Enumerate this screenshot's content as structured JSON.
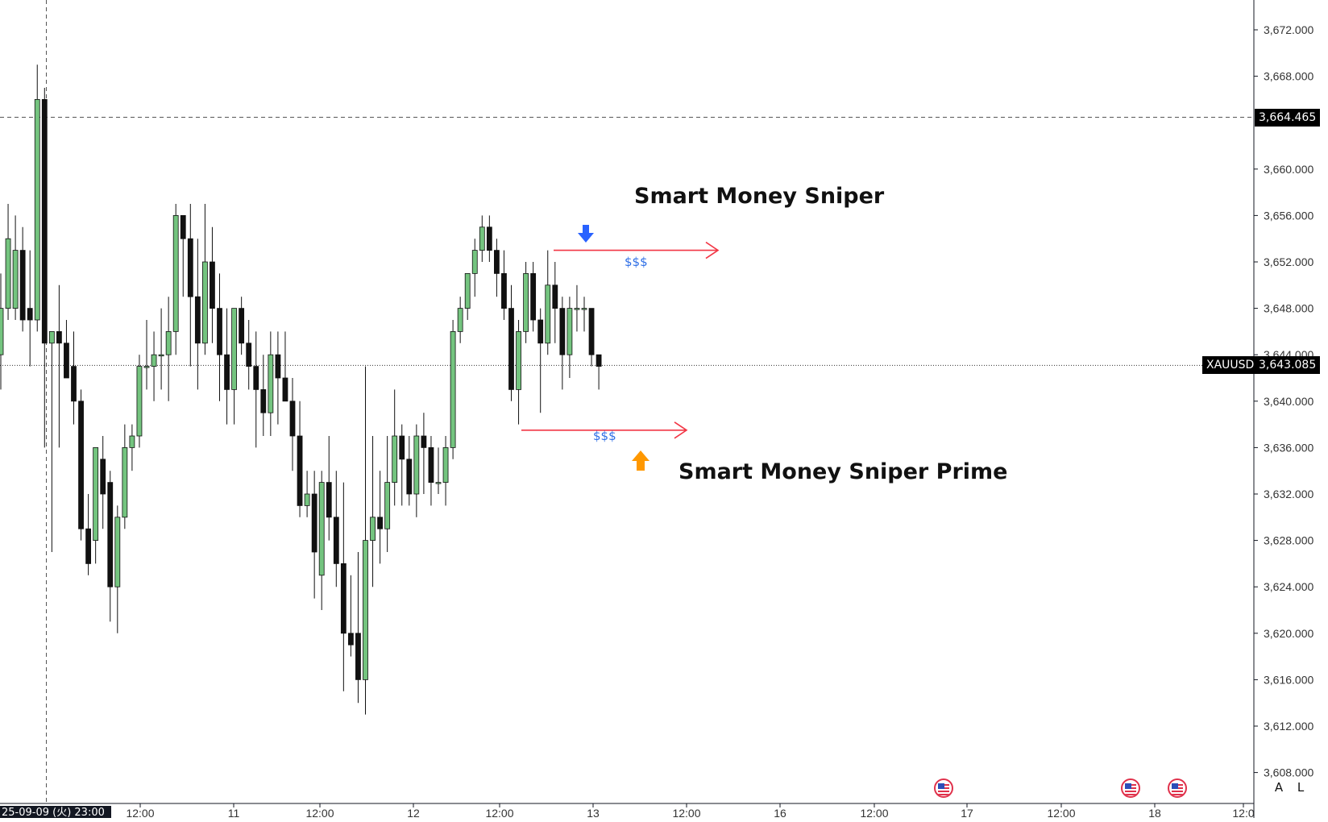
{
  "chart_data": {
    "type": "candlestick",
    "symbol": "XAUUSD",
    "last_price": "3,643.085",
    "crosshair_price": "3,664.465",
    "crosshair_date": "25-09-09 (火)  23:00",
    "ylim": [
      3606,
      3675
    ],
    "y_ticks": [
      "3,672.000",
      "3,668.000",
      "3,660.000",
      "3,656.000",
      "3,652.000",
      "3,648.000",
      "3,644.000",
      "3,640.000",
      "3,636.000",
      "3,632.000",
      "3,628.000",
      "3,624.000",
      "3,620.000",
      "3,616.000",
      "3,612.000",
      "3,608.000"
    ],
    "x_ticks": [
      "12:00",
      "11",
      "12:00",
      "12",
      "12:00",
      "13",
      "12:00",
      "16",
      "12:00",
      "17",
      "12:00",
      "18",
      "12:0"
    ],
    "candles": [
      {
        "o": 3644,
        "h": 3651,
        "l": 3641,
        "c": 3648
      },
      {
        "o": 3648,
        "h": 3657,
        "l": 3647,
        "c": 3654
      },
      {
        "o": 3648,
        "h": 3656,
        "l": 3647,
        "c": 3653
      },
      {
        "o": 3653,
        "h": 3655,
        "l": 3646,
        "c": 3647
      },
      {
        "o": 3648,
        "h": 3653,
        "l": 3643,
        "c": 3647
      },
      {
        "o": 3647,
        "h": 3669,
        "l": 3646,
        "c": 3666
      },
      {
        "o": 3666,
        "h": 3667,
        "l": 3636,
        "c": 3645
      },
      {
        "o": 3645,
        "h": 3646,
        "l": 3627,
        "c": 3646
      },
      {
        "o": 3646,
        "h": 3650,
        "l": 3636,
        "c": 3645
      },
      {
        "o": 3645,
        "h": 3647,
        "l": 3642,
        "c": 3642
      },
      {
        "o": 3643,
        "h": 3646,
        "l": 3638,
        "c": 3640
      },
      {
        "o": 3640,
        "h": 3641,
        "l": 3628,
        "c": 3629
      },
      {
        "o": 3629,
        "h": 3632,
        "l": 3625,
        "c": 3626
      },
      {
        "o": 3628,
        "h": 3636,
        "l": 3626,
        "c": 3636
      },
      {
        "o": 3635,
        "h": 3637,
        "l": 3629,
        "c": 3632
      },
      {
        "o": 3633,
        "h": 3634,
        "l": 3621,
        "c": 3624
      },
      {
        "o": 3624,
        "h": 3631,
        "l": 3620,
        "c": 3630
      },
      {
        "o": 3630,
        "h": 3638,
        "l": 3629,
        "c": 3636
      },
      {
        "o": 3636,
        "h": 3638,
        "l": 3634,
        "c": 3637
      },
      {
        "o": 3637,
        "h": 3644,
        "l": 3636,
        "c": 3643
      },
      {
        "o": 3643,
        "h": 3647,
        "l": 3641,
        "c": 3643
      },
      {
        "o": 3643,
        "h": 3646,
        "l": 3640,
        "c": 3644
      },
      {
        "o": 3644,
        "h": 3648,
        "l": 3641,
        "c": 3644
      },
      {
        "o": 3644,
        "h": 3649,
        "l": 3640,
        "c": 3646
      },
      {
        "o": 3646,
        "h": 3657,
        "l": 3644,
        "c": 3656
      },
      {
        "o": 3656,
        "h": 3656,
        "l": 3649,
        "c": 3654
      },
      {
        "o": 3654,
        "h": 3657,
        "l": 3643,
        "c": 3649
      },
      {
        "o": 3649,
        "h": 3654,
        "l": 3641,
        "c": 3645
      },
      {
        "o": 3645,
        "h": 3657,
        "l": 3644,
        "c": 3652
      },
      {
        "o": 3652,
        "h": 3655,
        "l": 3645,
        "c": 3648
      },
      {
        "o": 3648,
        "h": 3651,
        "l": 3640,
        "c": 3644
      },
      {
        "o": 3644,
        "h": 3648,
        "l": 3638,
        "c": 3641
      },
      {
        "o": 3641,
        "h": 3648,
        "l": 3638,
        "c": 3648
      },
      {
        "o": 3648,
        "h": 3649,
        "l": 3644,
        "c": 3645
      },
      {
        "o": 3645,
        "h": 3647,
        "l": 3641,
        "c": 3643
      },
      {
        "o": 3643,
        "h": 3646,
        "l": 3636,
        "c": 3641
      },
      {
        "o": 3641,
        "h": 3644,
        "l": 3637,
        "c": 3639
      },
      {
        "o": 3639,
        "h": 3646,
        "l": 3637,
        "c": 3644
      },
      {
        "o": 3644,
        "h": 3646,
        "l": 3638,
        "c": 3642
      },
      {
        "o": 3642,
        "h": 3646,
        "l": 3640,
        "c": 3640
      },
      {
        "o": 3640,
        "h": 3642,
        "l": 3634,
        "c": 3637
      },
      {
        "o": 3637,
        "h": 3640,
        "l": 3630,
        "c": 3631
      },
      {
        "o": 3631,
        "h": 3634,
        "l": 3630,
        "c": 3632
      },
      {
        "o": 3632,
        "h": 3634,
        "l": 3623,
        "c": 3627
      },
      {
        "o": 3625,
        "h": 3634,
        "l": 3622,
        "c": 3633
      },
      {
        "o": 3633,
        "h": 3637,
        "l": 3628,
        "c": 3630
      },
      {
        "o": 3630,
        "h": 3634,
        "l": 3624,
        "c": 3626
      },
      {
        "o": 3626,
        "h": 3633,
        "l": 3615,
        "c": 3620
      },
      {
        "o": 3620,
        "h": 3625,
        "l": 3618,
        "c": 3619
      },
      {
        "o": 3620,
        "h": 3627,
        "l": 3614,
        "c": 3616
      },
      {
        "o": 3616,
        "h": 3643,
        "l": 3613,
        "c": 3628
      },
      {
        "o": 3628,
        "h": 3637,
        "l": 3624,
        "c": 3630
      },
      {
        "o": 3630,
        "h": 3634,
        "l": 3626,
        "c": 3629
      },
      {
        "o": 3629,
        "h": 3637,
        "l": 3627,
        "c": 3633
      },
      {
        "o": 3633,
        "h": 3641,
        "l": 3631,
        "c": 3637
      },
      {
        "o": 3637,
        "h": 3638,
        "l": 3631,
        "c": 3635
      },
      {
        "o": 3635,
        "h": 3637,
        "l": 3631,
        "c": 3632
      },
      {
        "o": 3632,
        "h": 3638,
        "l": 3630,
        "c": 3637
      },
      {
        "o": 3637,
        "h": 3639,
        "l": 3632,
        "c": 3636
      },
      {
        "o": 3636,
        "h": 3637,
        "l": 3631,
        "c": 3633
      },
      {
        "o": 3633,
        "h": 3636,
        "l": 3632,
        "c": 3633
      },
      {
        "o": 3633,
        "h": 3637,
        "l": 3631,
        "c": 3636
      },
      {
        "o": 3636,
        "h": 3647,
        "l": 3635,
        "c": 3646
      },
      {
        "o": 3646,
        "h": 3649,
        "l": 3645,
        "c": 3648
      },
      {
        "o": 3648,
        "h": 3651,
        "l": 3647,
        "c": 3651
      },
      {
        "o": 3651,
        "h": 3654,
        "l": 3649,
        "c": 3653
      },
      {
        "o": 3653,
        "h": 3656,
        "l": 3652,
        "c": 3655
      },
      {
        "o": 3655,
        "h": 3656,
        "l": 3652,
        "c": 3653
      },
      {
        "o": 3653,
        "h": 3654,
        "l": 3649,
        "c": 3651
      },
      {
        "o": 3651,
        "h": 3653,
        "l": 3647,
        "c": 3648
      },
      {
        "o": 3648,
        "h": 3650,
        "l": 3640,
        "c": 3641
      },
      {
        "o": 3641,
        "h": 3647,
        "l": 3638,
        "c": 3646
      },
      {
        "o": 3646,
        "h": 3652,
        "l": 3645,
        "c": 3651
      },
      {
        "o": 3651,
        "h": 3652,
        "l": 3646,
        "c": 3647
      },
      {
        "o": 3647,
        "h": 3648,
        "l": 3639,
        "c": 3645
      },
      {
        "o": 3645,
        "h": 3653,
        "l": 3644,
        "c": 3650
      },
      {
        "o": 3650,
        "h": 3652,
        "l": 3645,
        "c": 3648
      },
      {
        "o": 3648,
        "h": 3649,
        "l": 3641,
        "c": 3644
      },
      {
        "o": 3644,
        "h": 3649,
        "l": 3642,
        "c": 3648
      },
      {
        "o": 3648,
        "h": 3650,
        "l": 3646,
        "c": 3648
      },
      {
        "o": 3648,
        "h": 3649,
        "l": 3646,
        "c": 3648
      },
      {
        "o": 3648,
        "h": 3648,
        "l": 3643,
        "c": 3644
      },
      {
        "o": 3644,
        "h": 3644,
        "l": 3641,
        "c": 3643
      }
    ],
    "annotations": [
      {
        "kind": "text",
        "label": "Smart Money Sniper"
      },
      {
        "kind": "text",
        "label": "Smart Money Sniper Prime"
      },
      {
        "kind": "label",
        "label": "$$$",
        "price": 3652
      },
      {
        "kind": "label",
        "label": "$$$",
        "price": 3637
      }
    ],
    "liquidity_lines": [
      {
        "price": 3653,
        "color": "#f23645"
      },
      {
        "price": 3637.5,
        "color": "#f23645"
      }
    ],
    "colors": {
      "up": "#74c47f",
      "down": "#111111",
      "sell_arrow": "#2962ff",
      "buy_arrow": "#ff9800",
      "line": "#f23645",
      "dollar": "#2f6fe6"
    }
  },
  "axis_buttons": {
    "auto": "A",
    "log": "L"
  },
  "calendar_icons": [
    "us-flag-icon",
    "us-flag-icon",
    "us-flag-icon"
  ]
}
